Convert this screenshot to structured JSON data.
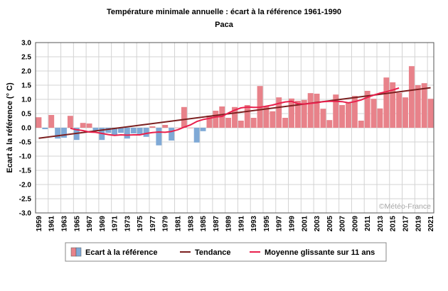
{
  "chart_data": {
    "type": "bar",
    "title": "Température minimale annuelle : écart à la référence 1961-1990",
    "subtitle": "Paca",
    "ylabel": "Ecart à la référence (° C)",
    "xlabel": "",
    "ylim": [
      -3.0,
      3.0
    ],
    "y_ticks": [
      "3.0",
      "2.5",
      "2.0",
      "1.5",
      "1.0",
      "0.5",
      "0.0",
      "-0.5",
      "-1.0",
      "-1.5",
      "-2.0",
      "-2.5",
      "-3.0"
    ],
    "x_tick_labels": [
      "1959",
      "1961",
      "1963",
      "1965",
      "1967",
      "1969",
      "1971",
      "1973",
      "1975",
      "1977",
      "1979",
      "1981",
      "1983",
      "1985",
      "1987",
      "1989",
      "1991",
      "1993",
      "1995",
      "1997",
      "1999",
      "2001",
      "2003",
      "2005",
      "2007",
      "2009",
      "2011",
      "2013",
      "2015",
      "2017",
      "2019",
      "2021"
    ],
    "grid": true,
    "legend_position": "bottom",
    "credit": "©Météo-France",
    "colors": {
      "positive": "#e8828a",
      "negative": "#7fa9d6",
      "trend": "#7b1f1f",
      "moving_average": "#e8204c",
      "grid": "#d3d3d3"
    },
    "years": [
      1959,
      1960,
      1961,
      1962,
      1963,
      1964,
      1965,
      1966,
      1967,
      1968,
      1969,
      1970,
      1971,
      1972,
      1973,
      1974,
      1975,
      1976,
      1977,
      1978,
      1979,
      1980,
      1981,
      1982,
      1983,
      1984,
      1985,
      1986,
      1987,
      1988,
      1989,
      1990,
      1991,
      1992,
      1993,
      1994,
      1995,
      1996,
      1997,
      1998,
      1999,
      2000,
      2001,
      2002,
      2003,
      2004,
      2005,
      2006,
      2007,
      2008,
      2009,
      2010,
      2011,
      2012,
      2013,
      2014,
      2015,
      2016,
      2017,
      2018,
      2019,
      2020,
      2021
    ],
    "series": [
      {
        "name": "Ecart à la référence",
        "type": "bar",
        "values": [
          0.37,
          -0.05,
          0.45,
          -0.38,
          -0.35,
          0.42,
          -0.43,
          0.17,
          0.15,
          -0.1,
          -0.43,
          -0.18,
          -0.28,
          -0.18,
          -0.38,
          -0.2,
          -0.22,
          -0.32,
          0.05,
          -0.62,
          0.1,
          -0.45,
          0.0,
          0.73,
          0.0,
          -0.52,
          -0.12,
          0.43,
          0.6,
          0.75,
          0.35,
          0.73,
          0.25,
          0.8,
          0.35,
          1.47,
          0.75,
          0.58,
          1.07,
          0.35,
          1.03,
          0.95,
          0.98,
          1.22,
          1.2,
          0.67,
          0.27,
          1.17,
          0.8,
          0.9,
          1.12,
          0.25,
          1.3,
          1.02,
          0.68,
          1.77,
          1.6,
          1.23,
          1.07,
          2.17,
          1.5,
          1.57,
          1.02
        ]
      },
      {
        "name": "Tendance",
        "type": "line",
        "start": {
          "x": 1959,
          "y": -0.37
        },
        "end": {
          "x": 2021,
          "y": 1.41
        }
      },
      {
        "name": "Moyenne glissante sur 11 ans",
        "type": "line",
        "x": [
          1964,
          1965,
          1966,
          1967,
          1968,
          1969,
          1970,
          1971,
          1972,
          1973,
          1974,
          1975,
          1976,
          1977,
          1978,
          1979,
          1980,
          1981,
          1982,
          1983,
          1984,
          1985,
          1986,
          1987,
          1988,
          1989,
          1990,
          1991,
          1992,
          1993,
          1994,
          1995,
          1996,
          1997,
          1998,
          1999,
          2000,
          2001,
          2002,
          2003,
          2004,
          2005,
          2006,
          2007,
          2008,
          2009,
          2010,
          2011,
          2012,
          2013,
          2014,
          2015,
          2016
        ],
        "y": [
          -0.02,
          -0.07,
          -0.1,
          -0.15,
          -0.16,
          -0.2,
          -0.24,
          -0.27,
          -0.25,
          -0.26,
          -0.25,
          -0.25,
          -0.2,
          -0.17,
          -0.15,
          -0.16,
          -0.13,
          -0.07,
          0.02,
          0.1,
          0.22,
          0.29,
          0.33,
          0.38,
          0.4,
          0.52,
          0.62,
          0.7,
          0.73,
          0.72,
          0.72,
          0.76,
          0.8,
          0.86,
          0.91,
          0.93,
          0.85,
          0.83,
          0.86,
          0.88,
          0.92,
          0.93,
          0.93,
          0.92,
          0.88,
          0.92,
          0.98,
          1.07,
          1.15,
          1.22,
          1.27,
          1.33,
          1.4
        ]
      }
    ]
  }
}
